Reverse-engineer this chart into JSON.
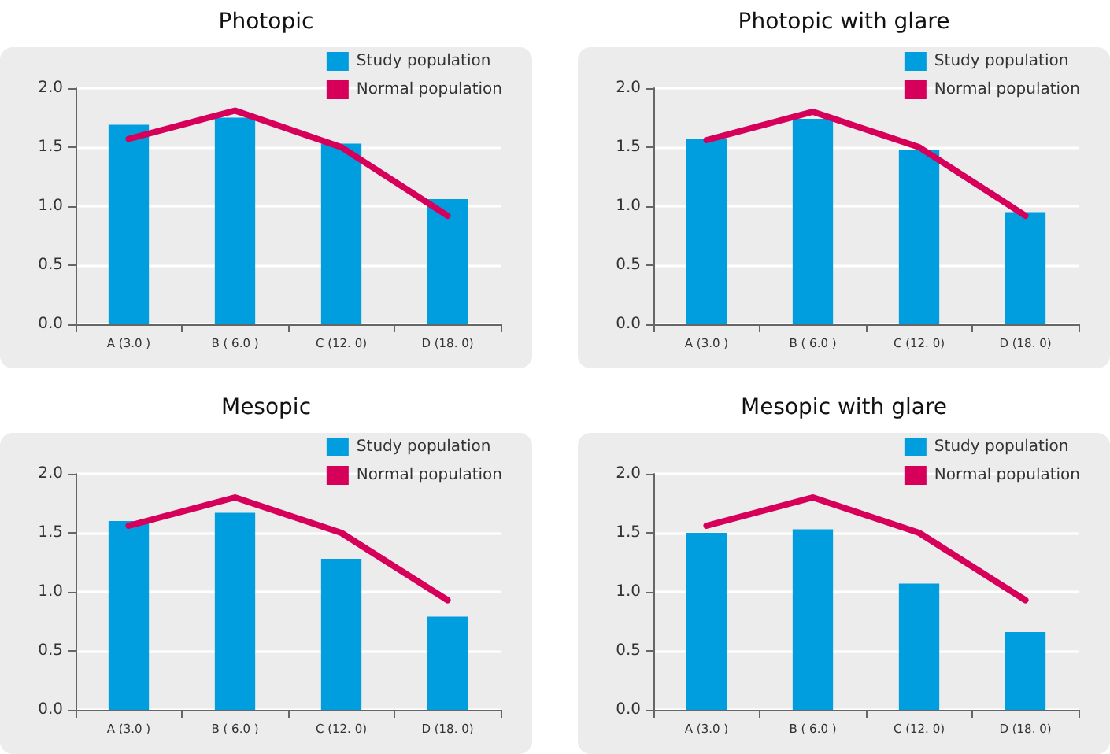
{
  "chart_data": [
    {
      "type": "bar",
      "title": "Photopic",
      "categories": [
        "A (3.0 )",
        "B ( 6.0 )",
        "C (12. 0)",
        "D (18. 0)"
      ],
      "series": [
        {
          "name": "Study population",
          "color": "#009ddf",
          "values": [
            1.69,
            1.75,
            1.53,
            1.06
          ]
        },
        {
          "name": "Normal population",
          "type": "line",
          "color": "#d6005a",
          "values": [
            1.57,
            1.81,
            1.5,
            0.92
          ]
        }
      ],
      "ylim": [
        0,
        2
      ],
      "yticks": [
        {
          "value": 0,
          "label": "0.0"
        },
        {
          "value": 0.5,
          "label": "0.5"
        },
        {
          "value": 1,
          "label": "1.0"
        },
        {
          "value": 1.5,
          "label": "1.5"
        },
        {
          "value": 2,
          "label": "2.0"
        }
      ],
      "grid": "y",
      "legend": "top right",
      "marker": "none"
    },
    {
      "type": "bar",
      "title": "Photopic with glare",
      "categories": [
        "A (3.0 )",
        "B ( 6.0 )",
        "C (12. 0)",
        "D (18. 0)"
      ],
      "series": [
        {
          "name": "Study population",
          "color": "#009ddf",
          "values": [
            1.57,
            1.74,
            1.48,
            0.95
          ]
        },
        {
          "name": "Normal population",
          "type": "line",
          "color": "#d6005a",
          "values": [
            1.56,
            1.8,
            1.5,
            0.92
          ]
        }
      ],
      "ylim": [
        0,
        2
      ],
      "yticks": [
        {
          "value": 0,
          "label": "0.0"
        },
        {
          "value": 0.5,
          "label": "0.5"
        },
        {
          "value": 1,
          "label": "1.0"
        },
        {
          "value": 1.5,
          "label": "1.5"
        },
        {
          "value": 2,
          "label": "2.0"
        }
      ],
      "grid": "y",
      "legend": "top right",
      "marker": "none"
    },
    {
      "type": "bar",
      "title": "Mesopic",
      "categories": [
        "A (3.0 )",
        "B ( 6.0 )",
        "C (12. 0)",
        "D (18. 0)"
      ],
      "series": [
        {
          "name": "Study population",
          "color": "#009ddf",
          "values": [
            1.6,
            1.67,
            1.28,
            0.79
          ]
        },
        {
          "name": "Normal population",
          "type": "line",
          "color": "#d6005a",
          "values": [
            1.56,
            1.8,
            1.5,
            0.93
          ]
        }
      ],
      "ylim": [
        0,
        2
      ],
      "yticks": [
        {
          "value": 0,
          "label": "0.0"
        },
        {
          "value": 0.5,
          "label": "0.5"
        },
        {
          "value": 1,
          "label": "1.0"
        },
        {
          "value": 1.5,
          "label": "1.5"
        },
        {
          "value": 2,
          "label": "2.0"
        }
      ],
      "grid": "y",
      "legend": "top right",
      "marker": "none"
    },
    {
      "type": "bar",
      "title": "Mesopic with glare",
      "categories": [
        "A (3.0 )",
        "B ( 6.0 )",
        "C (12. 0)",
        "D (18. 0)"
      ],
      "series": [
        {
          "name": "Study population",
          "color": "#009ddf",
          "values": [
            1.5,
            1.53,
            1.07,
            0.66
          ]
        },
        {
          "name": "Normal population",
          "type": "line",
          "color": "#d6005a",
          "values": [
            1.56,
            1.8,
            1.5,
            0.93
          ]
        }
      ],
      "ylim": [
        0,
        2
      ],
      "yticks": [
        {
          "value": 0,
          "label": "0.0"
        },
        {
          "value": 0.5,
          "label": "0.5"
        },
        {
          "value": 1,
          "label": "1.0"
        },
        {
          "value": 1.5,
          "label": "1.5"
        },
        {
          "value": 2,
          "label": "2.0"
        }
      ],
      "grid": "y",
      "legend": "top right",
      "marker": "none"
    }
  ]
}
